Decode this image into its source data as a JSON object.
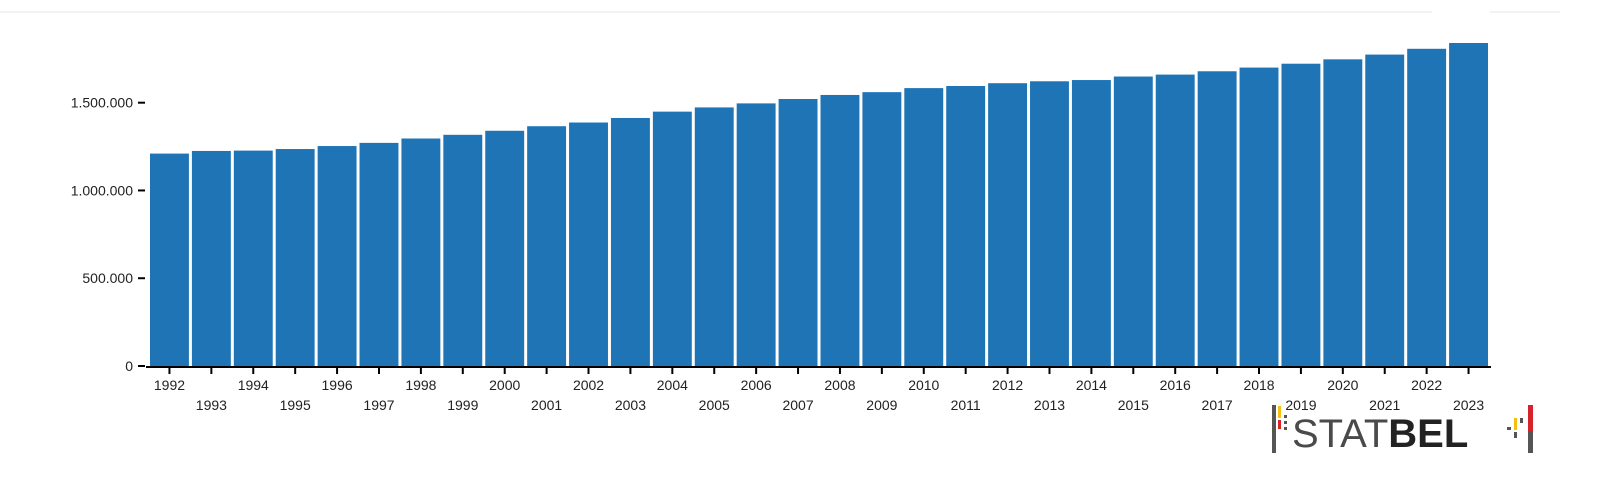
{
  "chart_data": {
    "type": "bar",
    "categories": [
      "1992",
      "1993",
      "1994",
      "1995",
      "1996",
      "1997",
      "1998",
      "1999",
      "2000",
      "2001",
      "2002",
      "2003",
      "2004",
      "2005",
      "2006",
      "2007",
      "2008",
      "2009",
      "2010",
      "2011",
      "2012",
      "2013",
      "2014",
      "2015",
      "2016",
      "2017",
      "2018",
      "2019",
      "2020",
      "2021",
      "2022",
      "2023"
    ],
    "values": [
      1210000,
      1225000,
      1227000,
      1236000,
      1253000,
      1271000,
      1296000,
      1317000,
      1340000,
      1366000,
      1387000,
      1413000,
      1449000,
      1473000,
      1496000,
      1521000,
      1544000,
      1560000,
      1583000,
      1595000,
      1611000,
      1622000,
      1629000,
      1649000,
      1660000,
      1679000,
      1700000,
      1722000,
      1747000,
      1774000,
      1807000,
      1840000
    ],
    "ylim": [
      0,
      1840000
    ],
    "yticks": [
      0,
      500000,
      1000000,
      1500000
    ],
    "ytick_labels": [
      "0",
      "500.000",
      "1.000.000",
      "1.500.000"
    ],
    "title": "",
    "xlabel": "",
    "ylabel": "",
    "grid": false,
    "bar_color": "#1f74b6",
    "axis_color": "#000000"
  },
  "logo": {
    "text_light": "STAT",
    "text_bold": "BEL",
    "colors": [
      "#000000",
      "#f4c20d",
      "#d6232a"
    ]
  }
}
